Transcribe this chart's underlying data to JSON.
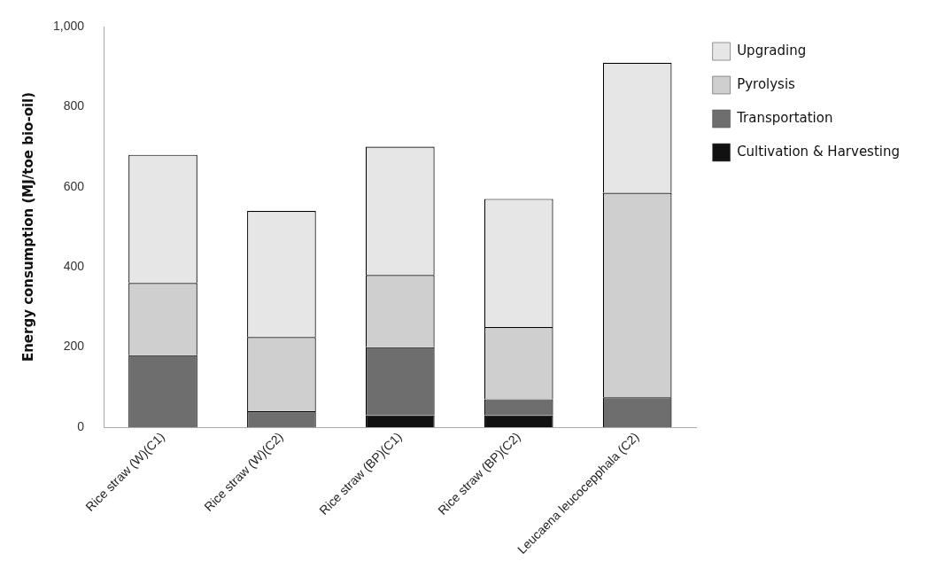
{
  "chart_data": {
    "type": "bar",
    "stacked": true,
    "ylabel": "Energy consumption (MJ/toe bio-oil)",
    "categories": [
      "Rice straw (W)(C1)",
      "Rice straw (W)(C2)",
      "Rice straw (BP)(C1)",
      "Rice straw (BP)(C2)",
      "Leucaena leucocepphala (C2)"
    ],
    "series": [
      {
        "name": "Cultivation & Harvesting",
        "color": "#111111",
        "values": [
          0,
          0,
          30,
          30,
          0
        ]
      },
      {
        "name": "Transportation",
        "color": "#6e6e6e",
        "values": [
          180,
          40,
          170,
          40,
          75
        ]
      },
      {
        "name": "Pyrolysis",
        "color": "#cfcfcf",
        "values": [
          180,
          185,
          180,
          180,
          510
        ]
      },
      {
        "name": "Upgrading",
        "color": "#e6e6e6",
        "values": [
          320,
          315,
          320,
          320,
          325
        ]
      }
    ],
    "ylim": [
      0,
      1000
    ],
    "yticks": [
      0,
      200,
      400,
      600,
      800,
      {
        "value": 1000,
        "label": "1,000"
      }
    ],
    "grid": false,
    "legend": "right"
  }
}
